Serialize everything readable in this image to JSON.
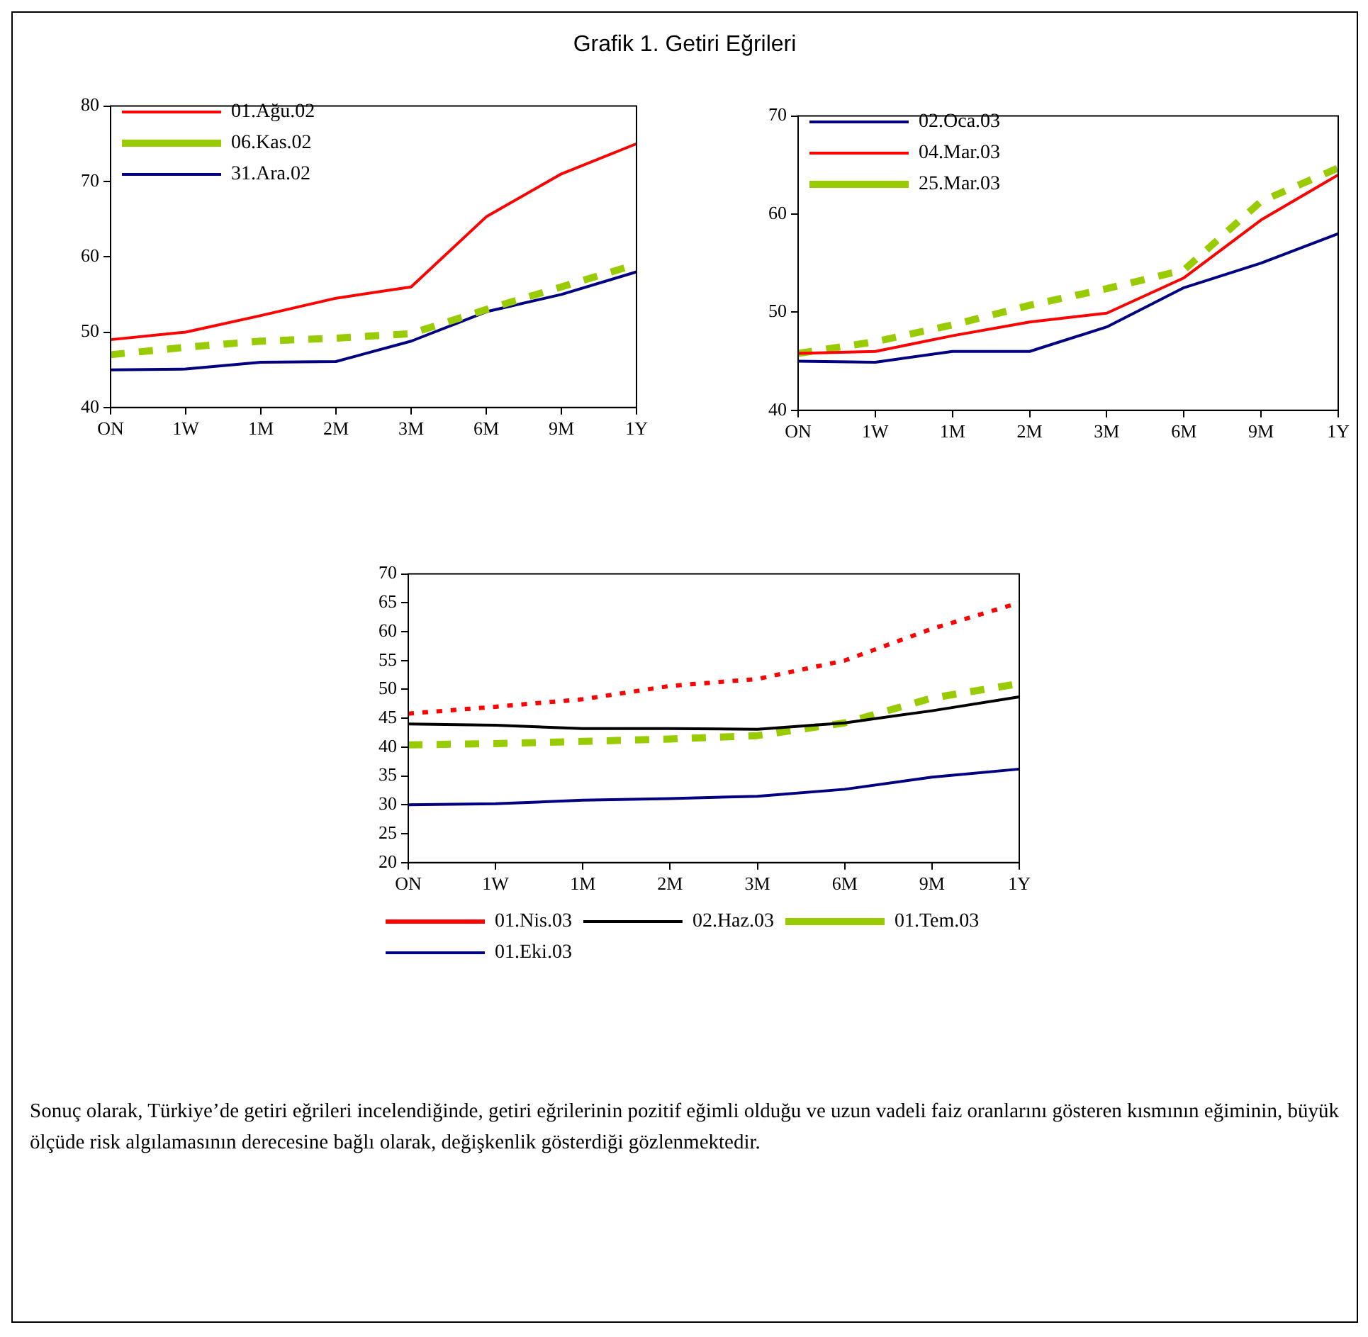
{
  "chart_data": [
    {
      "type": "line",
      "title": "Grafik 1. Getiri Eğrileri",
      "categories": [
        "ON",
        "1W",
        "1M",
        "2M",
        "3M",
        "6M",
        "9M",
        "1Y"
      ],
      "ylim": [
        40,
        80
      ],
      "yticks": [
        40,
        50,
        60,
        70,
        80
      ],
      "legend": "top left",
      "marker": "none",
      "series": [
        {
          "name": "01.Ağu.02",
          "color": "#ff0000",
          "line_style": "solid",
          "values": [
            49,
            50,
            52.2,
            54.5,
            56,
            65.3,
            71,
            75
          ]
        },
        {
          "name": "06.Kas.02",
          "color": "#99cc00",
          "line_style": "dashed",
          "values": [
            47,
            48,
            48.8,
            49.2,
            49.8,
            53,
            56,
            59
          ]
        },
        {
          "name": "31.Ara.02",
          "color": "#000080",
          "line_style": "solid",
          "values": [
            45,
            45.1,
            46,
            46.1,
            48.8,
            52.7,
            55,
            58
          ]
        }
      ]
    },
    {
      "type": "line",
      "categories": [
        "ON",
        "1W",
        "1M",
        "2M",
        "3M",
        "6M",
        "9M",
        "1Y"
      ],
      "ylim": [
        40,
        70
      ],
      "yticks": [
        40,
        50,
        60,
        70
      ],
      "legend": "top left",
      "marker": "none",
      "series": [
        {
          "name": "02.Oca.03",
          "color": "#000080",
          "line_style": "solid",
          "values": [
            45,
            44.9,
            46,
            46,
            48.5,
            52.5,
            55,
            58
          ]
        },
        {
          "name": "04.Mar.03",
          "color": "#ff0000",
          "line_style": "solid",
          "values": [
            45.8,
            46,
            47.6,
            49,
            49.9,
            53.5,
            59.4,
            64
          ]
        },
        {
          "name": "25.Mar.03",
          "color": "#99cc00",
          "line_style": "dashed",
          "values": [
            45.8,
            47,
            48.7,
            50.7,
            52.4,
            54.3,
            61.3,
            64.7
          ]
        }
      ]
    },
    {
      "type": "line",
      "categories": [
        "ON",
        "1W",
        "1M",
        "2M",
        "3M",
        "6M",
        "9M",
        "1Y"
      ],
      "ylim": [
        20,
        70
      ],
      "yticks": [
        20,
        25,
        30,
        35,
        40,
        45,
        50,
        55,
        60,
        65,
        70
      ],
      "legend": "bottom",
      "marker": "none",
      "annotations": [
        "Sonuç olarak, Türkiye’de getiri eğrileri incelendiğinde, getiri eğrilerinin pozitif eğimli olduğu ve uzun vadeli faiz oranlarını gösteren kısmının eğiminin, büyük ölçüde risk algılamasının derecesine bağlı olarak, değişkenlik gösterdiği gözlenmektedir."
      ],
      "series": [
        {
          "name": "01.Nis.03",
          "color": "#ff0000",
          "line_style": "dotted",
          "values": [
            45.8,
            47,
            48.3,
            50.6,
            51.8,
            55,
            60.5,
            65
          ]
        },
        {
          "name": "02.Haz.03",
          "color": "#000000",
          "line_style": "solid",
          "values": [
            44,
            43.8,
            43.2,
            43.2,
            43.1,
            44.2,
            46.3,
            48.7
          ]
        },
        {
          "name": "01.Tem.03",
          "color": "#99cc00",
          "line_style": "dashed",
          "values": [
            40.4,
            40.6,
            41,
            41.4,
            42,
            44.2,
            48.5,
            51
          ]
        },
        {
          "name": "01.Eki.03",
          "color": "#000080",
          "line_style": "solid",
          "values": [
            30,
            30.2,
            30.8,
            31.1,
            31.5,
            32.7,
            34.8,
            36.2
          ]
        }
      ]
    }
  ]
}
